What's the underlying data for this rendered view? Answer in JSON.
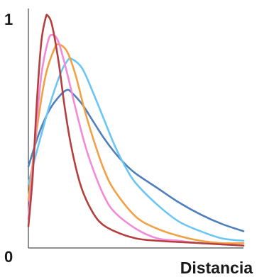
{
  "chart_data": {
    "type": "line",
    "xlabel": "Distancia",
    "ylabel": "",
    "y_tick_labels": [
      "0",
      "1"
    ],
    "xlim": [
      0,
      1
    ],
    "ylim": [
      0,
      1
    ],
    "grid": false,
    "legend": "none",
    "series": [
      {
        "color": "#4f7fbd",
        "x": [
          0,
          0.05,
          0.1,
          0.15,
          0.18,
          0.2,
          0.25,
          0.3,
          0.35,
          0.4,
          0.45,
          0.5,
          0.6,
          0.7,
          0.8,
          0.9,
          1.0
        ],
        "y": [
          0.34,
          0.48,
          0.58,
          0.64,
          0.66,
          0.65,
          0.6,
          0.53,
          0.46,
          0.4,
          0.35,
          0.31,
          0.25,
          0.19,
          0.14,
          0.1,
          0.07
        ]
      },
      {
        "color": "#6cc6f5",
        "x": [
          0,
          0.05,
          0.1,
          0.15,
          0.18,
          0.2,
          0.25,
          0.3,
          0.35,
          0.4,
          0.45,
          0.5,
          0.6,
          0.7,
          0.8,
          0.9,
          1.0
        ],
        "y": [
          0.27,
          0.44,
          0.6,
          0.73,
          0.78,
          0.79,
          0.75,
          0.65,
          0.54,
          0.43,
          0.34,
          0.27,
          0.18,
          0.11,
          0.07,
          0.04,
          0.03
        ]
      },
      {
        "color": "#f2a044",
        "x": [
          0,
          0.04,
          0.08,
          0.12,
          0.14,
          0.18,
          0.22,
          0.26,
          0.3,
          0.35,
          0.4,
          0.5,
          0.6,
          0.7,
          0.8,
          0.9,
          1.0
        ],
        "y": [
          0.2,
          0.5,
          0.72,
          0.83,
          0.85,
          0.82,
          0.72,
          0.58,
          0.46,
          0.33,
          0.24,
          0.13,
          0.08,
          0.05,
          0.03,
          0.02,
          0.02
        ]
      },
      {
        "color": "#f28ad8",
        "x": [
          0,
          0.03,
          0.06,
          0.09,
          0.11,
          0.14,
          0.18,
          0.22,
          0.26,
          0.3,
          0.35,
          0.4,
          0.5,
          0.6,
          0.7,
          0.8,
          1.0
        ],
        "y": [
          0.12,
          0.44,
          0.72,
          0.86,
          0.89,
          0.86,
          0.73,
          0.58,
          0.44,
          0.33,
          0.22,
          0.15,
          0.08,
          0.04,
          0.03,
          0.02,
          0.01
        ]
      },
      {
        "color": "#b3403e",
        "x": [
          0,
          0.02,
          0.04,
          0.06,
          0.08,
          0.09,
          0.11,
          0.14,
          0.17,
          0.2,
          0.24,
          0.28,
          0.33,
          0.4,
          0.5,
          0.6,
          0.8,
          1.0
        ],
        "y": [
          0.09,
          0.3,
          0.62,
          0.86,
          0.96,
          0.97,
          0.93,
          0.78,
          0.58,
          0.42,
          0.27,
          0.18,
          0.11,
          0.07,
          0.04,
          0.03,
          0.02,
          0.01
        ]
      }
    ]
  }
}
